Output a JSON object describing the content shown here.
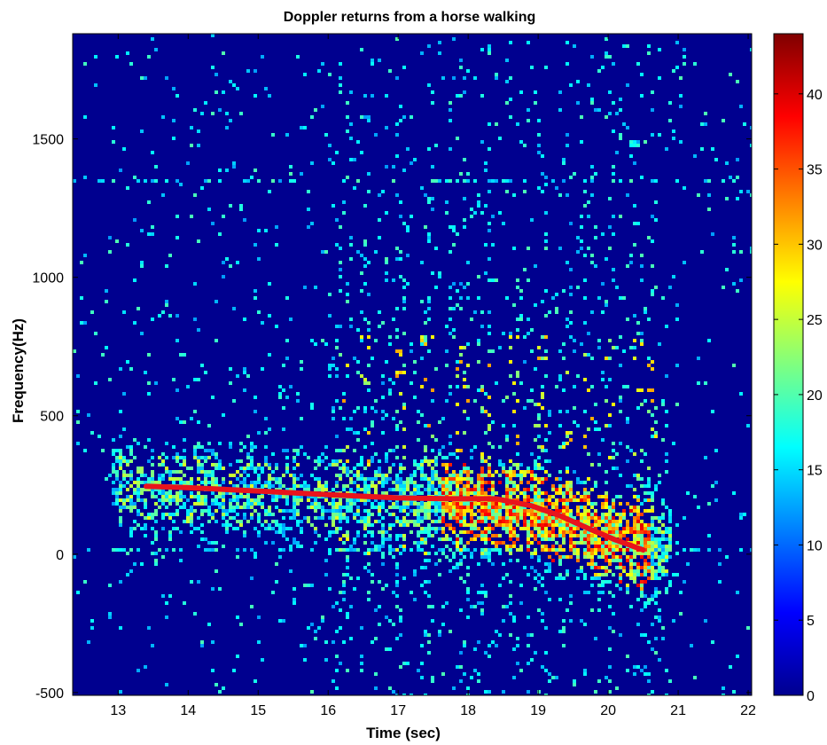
{
  "chart_data": {
    "type": "heatmap",
    "title": "Doppler returns from a horse walking",
    "xlabel": "Time (sec)",
    "ylabel": "Frequency(Hz)",
    "xlim": [
      12.35,
      22.05
    ],
    "ylim": [
      -510,
      1880
    ],
    "x_ticks": [
      13,
      14,
      15,
      16,
      17,
      18,
      19,
      20,
      21,
      22
    ],
    "y_ticks": [
      -500,
      0,
      500,
      1000,
      1500
    ],
    "colorbar": {
      "range": [
        0,
        44
      ],
      "ticks": [
        0,
        5,
        10,
        15,
        20,
        25,
        30,
        35,
        40
      ],
      "colormap": "jet"
    },
    "background_color": "#00008f",
    "energy_band": {
      "description_points": [
        {
          "x": 13.0,
          "y": 260
        },
        {
          "x": 14.0,
          "y": 240
        },
        {
          "x": 15.0,
          "y": 225
        },
        {
          "x": 16.0,
          "y": 215
        },
        {
          "x": 17.0,
          "y": 200
        },
        {
          "x": 18.0,
          "y": 200
        },
        {
          "x": 19.0,
          "y": 150
        },
        {
          "x": 20.0,
          "y": 60
        },
        {
          "x": 20.6,
          "y": 20
        }
      ]
    },
    "overlay_curve": {
      "color": "#e8141c",
      "points": [
        {
          "x": 13.4,
          "y": 245
        },
        {
          "x": 14.0,
          "y": 240
        },
        {
          "x": 15.0,
          "y": 228
        },
        {
          "x": 16.0,
          "y": 215
        },
        {
          "x": 17.0,
          "y": 203
        },
        {
          "x": 17.8,
          "y": 200
        },
        {
          "x": 18.4,
          "y": 200
        },
        {
          "x": 18.9,
          "y": 175
        },
        {
          "x": 19.3,
          "y": 140
        },
        {
          "x": 19.7,
          "y": 95
        },
        {
          "x": 20.1,
          "y": 52
        },
        {
          "x": 20.5,
          "y": 15
        }
      ]
    }
  }
}
